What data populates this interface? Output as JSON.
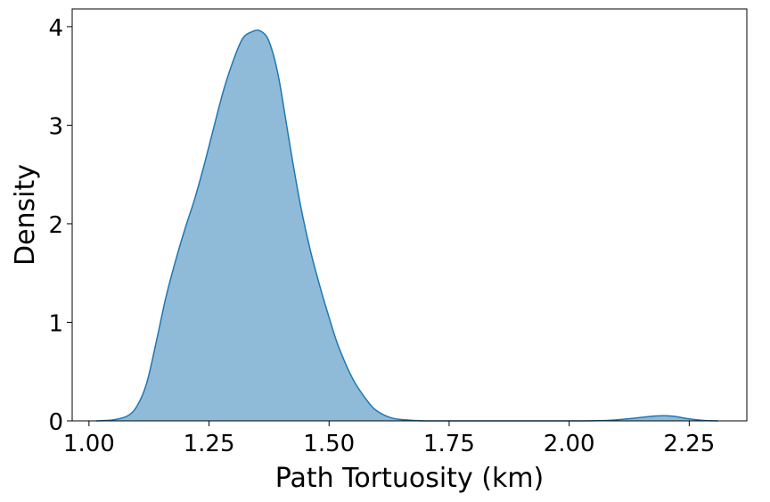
{
  "chart_data": {
    "type": "area",
    "title": "",
    "xlabel": "Path Tortuosity (km)",
    "ylabel": "Density",
    "xlim": [
      0.965,
      2.37
    ],
    "ylim": [
      0,
      4.18
    ],
    "grid": false,
    "legend": "none",
    "x_ticks": [
      1.0,
      1.25,
      1.5,
      1.75,
      2.0,
      2.25
    ],
    "x_tick_labels": [
      "1.00",
      "1.25",
      "1.50",
      "1.75",
      "2.00",
      "2.25"
    ],
    "y_ticks": [
      0,
      1,
      2,
      3,
      4
    ],
    "y_tick_labels": [
      "0",
      "1",
      "2",
      "3",
      "4"
    ],
    "series": [
      {
        "color": "#1f77b4",
        "fill_color": "#1f77b4",
        "fill_opacity": 0.5,
        "x": [
          1.015,
          1.05,
          1.08,
          1.1,
          1.12,
          1.14,
          1.16,
          1.18,
          1.2,
          1.22,
          1.24,
          1.26,
          1.28,
          1.3,
          1.32,
          1.34,
          1.355,
          1.37,
          1.38,
          1.39,
          1.4,
          1.42,
          1.44,
          1.46,
          1.48,
          1.5,
          1.52,
          1.55,
          1.58,
          1.6,
          1.63,
          1.66,
          1.7,
          1.75,
          1.8,
          1.9,
          2.0,
          2.08,
          2.12,
          2.15,
          2.18,
          2.2,
          2.22,
          2.25,
          2.28,
          2.31
        ],
        "y": [
          0.0,
          0.01,
          0.05,
          0.15,
          0.38,
          0.8,
          1.25,
          1.62,
          1.95,
          2.25,
          2.6,
          2.98,
          3.35,
          3.65,
          3.88,
          3.95,
          3.96,
          3.9,
          3.78,
          3.6,
          3.35,
          2.75,
          2.2,
          1.75,
          1.38,
          1.05,
          0.75,
          0.42,
          0.2,
          0.1,
          0.03,
          0.01,
          0.0,
          0.0,
          0.0,
          0.0,
          0.0,
          0.005,
          0.02,
          0.035,
          0.05,
          0.052,
          0.045,
          0.02,
          0.005,
          0.0
        ]
      }
    ]
  }
}
